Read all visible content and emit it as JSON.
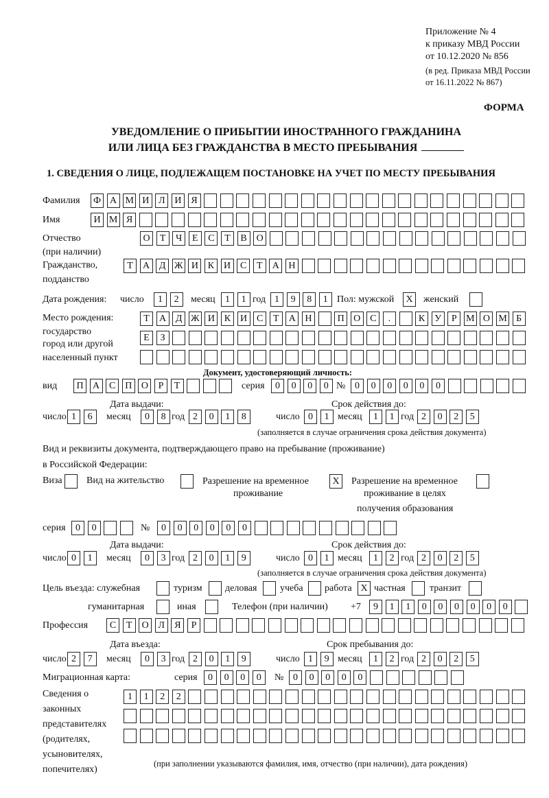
{
  "header": {
    "appendix": "Приложение № 4",
    "order": "к приказу МВД России",
    "order_date": "от 10.12.2020 № 856",
    "revision1": "(в ред. Приказа МВД России",
    "revision2": "от 16.11.2022 № 867)",
    "form_label": "ФОРМА"
  },
  "title": {
    "line1": "УВЕДОМЛЕНИЕ О ПРИБЫТИИ ИНОСТРАННОГО ГРАЖДАНИНА",
    "line2": "ИЛИ ЛИЦА БЕЗ ГРАЖДАНСТВА В МЕСТО ПРЕБЫВАНИЯ"
  },
  "section1": {
    "heading": "1. СВЕДЕНИЯ О ЛИЦЕ, ПОДЛЕЖАЩЕМ ПОСТАНОВКЕ НА УЧЕТ ПО МЕСТУ ПРЕБЫВАНИЯ",
    "surname": {
      "label": "Фамилия",
      "value": "ФАМИЛИЯ",
      "boxes": 27
    },
    "name": {
      "label": "Имя",
      "value": "ИМЯ",
      "boxes": 27
    },
    "patronymic": {
      "label": "Отчество",
      "label2": "(при наличии)",
      "value": "ОТЧЕСТВО",
      "boxes": 24
    },
    "citizenship": {
      "label": "Гражданство,",
      "label2": "подданство",
      "value": "ТАДЖИКИСТАН",
      "boxes": 25
    },
    "birth_date": {
      "label": "Дата рождения:",
      "day_label": "число",
      "month_label": "месяц",
      "year_label": "год",
      "day": {
        "value": "12",
        "boxes": 2
      },
      "month": {
        "value": "11",
        "boxes": 2
      },
      "year": {
        "value": "1981",
        "boxes": 4
      }
    },
    "sex": {
      "label": "Пол: мужской",
      "female_label": "женский",
      "male": {
        "value": "X",
        "boxes": 1
      },
      "female": {
        "value": "",
        "boxes": 1
      }
    },
    "birth_place": {
      "label1": "Место рождения:",
      "label2": "государство",
      "label3": "город или другой",
      "label4": "населенный пункт",
      "row1": {
        "value": "ТАДЖИКИСТАН ПОС. КУРМОМБ",
        "boxes": 24
      },
      "row2": {
        "value": "ЕЗ",
        "boxes": 24
      },
      "row3": {
        "value": "",
        "boxes": 24
      }
    },
    "id_doc": {
      "heading": "Документ, удостоверяющий личность:",
      "kind_label": "вид",
      "kind": {
        "value": "ПАСПОРТ",
        "boxes": 10
      },
      "series_label": "серия",
      "series": {
        "value": "0000",
        "boxes": 4
      },
      "number_label": "№",
      "number": {
        "value": "000000",
        "boxes": 11
      },
      "issue_label": "Дата выдачи:",
      "valid_label": "Срок действия до:",
      "day_label": "число",
      "month_label": "месяц",
      "year_label": "год",
      "issue_day": {
        "value": "16",
        "boxes": 2
      },
      "issue_month": {
        "value": "08",
        "boxes": 2
      },
      "issue_year": {
        "value": "2018",
        "boxes": 4
      },
      "valid_day": {
        "value": "01",
        "boxes": 2
      },
      "valid_month": {
        "value": "11",
        "boxes": 2
      },
      "valid_year": {
        "value": "2025",
        "boxes": 4
      },
      "note": "(заполняется в случае ограничения срока действия документа)"
    },
    "stay_doc": {
      "heading1": "Вид и реквизиты документа, подтверждающего право на пребывание (проживание)",
      "heading2": "в Российской Федерации:",
      "visa_label": "Виза",
      "visa": {
        "value": "",
        "boxes": 1
      },
      "residence_label": "Вид на жительство",
      "residence": {
        "value": "",
        "boxes": 1
      },
      "temp_label1": "Разрешение на временное",
      "temp_label2": "проживание",
      "temp": {
        "value": "X",
        "boxes": 1
      },
      "edu_label1": "Разрешение на временное",
      "edu_label2": "проживание в целях",
      "edu_label3": "получения образования",
      "edu": {
        "value": "",
        "boxes": 1
      },
      "series_label": "серия",
      "series": {
        "value": "00",
        "boxes": 4
      },
      "number_label": "№",
      "number": {
        "value": "000000",
        "boxes": 15
      },
      "issue_label": "Дата выдачи:",
      "valid_label": "Срок действия до:",
      "day_label": "число",
      "month_label": "месяц",
      "year_label": "год",
      "issue_day": {
        "value": "01",
        "boxes": 2
      },
      "issue_month": {
        "value": "03",
        "boxes": 2
      },
      "issue_year": {
        "value": "2019",
        "boxes": 4
      },
      "valid_day": {
        "value": "01",
        "boxes": 2
      },
      "valid_month": {
        "value": "12",
        "boxes": 2
      },
      "valid_year": {
        "value": "2025",
        "boxes": 4
      },
      "note": "(заполняется в случае ограничения срока действия документа)"
    },
    "purpose": {
      "label": "Цель въезда: служебная",
      "service": {
        "value": "",
        "boxes": 1
      },
      "tourism_label": "туризм",
      "tourism": {
        "value": "",
        "boxes": 1
      },
      "business_label": "деловая",
      "business": {
        "value": "",
        "boxes": 1
      },
      "study_label": "учеба",
      "study": {
        "value": "",
        "boxes": 1
      },
      "work_label": "работа",
      "work": {
        "value": "X",
        "boxes": 1
      },
      "private_label": "частная",
      "private": {
        "value": "",
        "boxes": 1
      },
      "transit_label": "транзит",
      "transit": {
        "value": "",
        "boxes": 1
      },
      "humanitarian_label": "гуманитарная",
      "humanitarian": {
        "value": "",
        "boxes": 1
      },
      "other_label": "иная",
      "other": {
        "value": "",
        "boxes": 1
      }
    },
    "phone": {
      "label": "Телефон (при наличии)",
      "prefix": "+7",
      "value": "911000000",
      "boxes": 10
    },
    "profession": {
      "label": "Профессия",
      "value": "СТОЛЯР",
      "boxes": 26
    },
    "entry": {
      "entry_label": "Дата въезда:",
      "stay_label": "Срок пребывания до:",
      "day_label": "число",
      "month_label": "месяц",
      "year_label": "год",
      "entry_day": {
        "value": "27",
        "boxes": 2
      },
      "entry_month": {
        "value": "03",
        "boxes": 2
      },
      "entry_year": {
        "value": "2019",
        "boxes": 4
      },
      "stay_day": {
        "value": "19",
        "boxes": 2
      },
      "stay_month": {
        "value": "12",
        "boxes": 2
      },
      "stay_year": {
        "value": "2025",
        "boxes": 4
      }
    },
    "migration_card": {
      "label": "Миграционная карта:",
      "series_label": "серия",
      "series": {
        "value": "0000",
        "boxes": 4
      },
      "number_label": "№",
      "number": {
        "value": "00000",
        "boxes": 11
      }
    },
    "representatives": {
      "label1": "Сведения о",
      "label2": "законных",
      "label3": "представителях",
      "label4": "(родителях,",
      "label5": "усыновителях,",
      "label6": "попечителях)",
      "row1": {
        "value": "1122",
        "boxes": 25
      },
      "row2": {
        "value": "",
        "boxes": 25
      },
      "row3": {
        "value": "",
        "boxes": 25
      },
      "note": "(при заполнении указываются фамилия, имя, отчество (при наличии), дата рождения)"
    }
  }
}
